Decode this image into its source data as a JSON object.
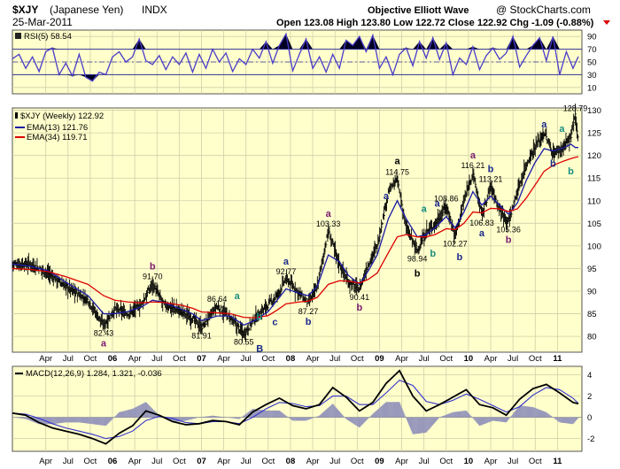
{
  "header": {
    "symbol": "$XJY",
    "name": "(Japanese Yen)",
    "exchange": "INDX",
    "title_center": "Objective Elliott Wave",
    "copyright": "@ StockCharts.com",
    "date": "25-Mar-2011",
    "quote": "Open 123.08  High 123.80  Low 122.72  Close 122.92  Chg -1.09 (-0.88%)"
  },
  "colors": {
    "panel_bg": "#ffffcc",
    "price": "#000000",
    "ema13": "#1a1aa6",
    "ema34": "#dd0000",
    "rsi": "#4a3cc8",
    "macd": "#000000",
    "signal": "#3333cc",
    "histogram": "#9999bb",
    "wave_black": "#000000",
    "wave_navy": "#1a2a8c",
    "wave_purple": "#7a1a6e",
    "wave_teal": "#1a8c80"
  },
  "x_axis": {
    "labels": [
      {
        "t": 0.75,
        "text": "Apr"
      },
      {
        "t": 1.25,
        "text": "Jul"
      },
      {
        "t": 1.75,
        "text": "Oct"
      },
      {
        "t": 2.25,
        "text": "06"
      },
      {
        "t": 2.75,
        "text": "Apr"
      },
      {
        "t": 3.25,
        "text": "Jul"
      },
      {
        "t": 3.75,
        "text": "Oct"
      },
      {
        "t": 4.25,
        "text": "07"
      },
      {
        "t": 4.75,
        "text": "Apr"
      },
      {
        "t": 5.25,
        "text": "Jul"
      },
      {
        "t": 5.75,
        "text": "Oct"
      },
      {
        "t": 6.25,
        "text": "08"
      },
      {
        "t": 6.75,
        "text": "Apr"
      },
      {
        "t": 7.25,
        "text": "Jul"
      },
      {
        "t": 7.75,
        "text": "Oct"
      },
      {
        "t": 8.25,
        "text": "09"
      },
      {
        "t": 8.75,
        "text": "Apr"
      },
      {
        "t": 9.25,
        "text": "Jul"
      },
      {
        "t": 9.75,
        "text": "Oct"
      },
      {
        "t": 10.25,
        "text": "10"
      },
      {
        "t": 10.75,
        "text": "Apr"
      },
      {
        "t": 11.25,
        "text": "Jul"
      },
      {
        "t": 11.75,
        "text": "Oct"
      },
      {
        "t": 12.25,
        "text": "11"
      }
    ],
    "bold_years": [
      "06",
      "07",
      "08",
      "09",
      "10",
      "11"
    ],
    "range": [
      0,
      12.8
    ]
  },
  "chart_data": [
    {
      "type": "line",
      "title": "RSI(5) 58.54",
      "ylim": [
        0,
        100
      ],
      "ticks": [
        10,
        30,
        50,
        70,
        90
      ],
      "overbought": 70,
      "oversold": 30,
      "x": [
        0.0,
        0.15,
        0.3,
        0.45,
        0.6,
        0.75,
        0.9,
        1.05,
        1.2,
        1.35,
        1.5,
        1.65,
        1.8,
        1.95,
        2.1,
        2.25,
        2.4,
        2.55,
        2.7,
        2.85,
        3.0,
        3.15,
        3.3,
        3.45,
        3.6,
        3.75,
        3.9,
        4.05,
        4.2,
        4.35,
        4.5,
        4.65,
        4.8,
        4.95,
        5.1,
        5.25,
        5.4,
        5.55,
        5.7,
        5.85,
        6.0,
        6.15,
        6.3,
        6.45,
        6.6,
        6.75,
        6.9,
        7.05,
        7.2,
        7.35,
        7.5,
        7.65,
        7.8,
        7.95,
        8.1,
        8.25,
        8.4,
        8.55,
        8.7,
        8.85,
        9.0,
        9.15,
        9.3,
        9.45,
        9.6,
        9.75,
        9.9,
        10.05,
        10.2,
        10.35,
        10.5,
        10.65,
        10.8,
        10.95,
        11.1,
        11.25,
        11.4,
        11.55,
        11.7,
        11.85,
        12.0,
        12.15,
        12.3,
        12.45,
        12.6,
        12.72
      ],
      "values": [
        55,
        62,
        40,
        58,
        35,
        66,
        72,
        30,
        48,
        28,
        62,
        26,
        20,
        34,
        30,
        58,
        66,
        50,
        58,
        86,
        52,
        46,
        60,
        38,
        58,
        46,
        64,
        34,
        62,
        40,
        70,
        50,
        64,
        35,
        55,
        46,
        70,
        56,
        82,
        48,
        76,
        94,
        36,
        62,
        86,
        40,
        58,
        34,
        62,
        40,
        84,
        76,
        90,
        66,
        92,
        40,
        58,
        30,
        62,
        72,
        44,
        82,
        56,
        88,
        54,
        80,
        30,
        56,
        46,
        74,
        38,
        60,
        72,
        54,
        64,
        90,
        42,
        60,
        76,
        88,
        52,
        90,
        30,
        66,
        40,
        58.54
      ]
    },
    {
      "type": "line",
      "title": "$XJY (Weekly) 122.92",
      "ylim": [
        76.5,
        130.5
      ],
      "ticks": [
        80,
        85,
        90,
        95,
        100,
        105,
        110,
        115,
        120,
        125,
        130
      ],
      "x": [
        0.0,
        0.4,
        0.8,
        1.2,
        1.7,
        2.05,
        2.3,
        2.6,
        2.9,
        3.15,
        3.4,
        3.8,
        4.05,
        4.25,
        4.6,
        4.9,
        5.2,
        5.45,
        5.75,
        5.95,
        6.15,
        6.45,
        6.65,
        6.85,
        7.1,
        7.35,
        7.55,
        7.8,
        8.0,
        8.2,
        8.45,
        8.65,
        8.85,
        9.1,
        9.3,
        9.5,
        9.75,
        9.95,
        10.15,
        10.35,
        10.55,
        10.75,
        10.95,
        11.15,
        11.35,
        11.55,
        11.75,
        11.95,
        12.15,
        12.35,
        12.55,
        12.65,
        12.72
      ],
      "values": [
        96,
        96,
        94,
        91,
        88,
        82.43,
        86,
        85,
        87,
        91.7,
        87,
        85.5,
        84,
        81.91,
        86.64,
        84,
        80.55,
        84,
        87,
        89,
        92.77,
        89.5,
        87.27,
        91,
        103.33,
        96,
        92,
        90.41,
        96,
        100,
        112,
        114.75,
        104,
        98.94,
        103,
        104.8,
        108.86,
        102.27,
        110,
        116.21,
        106.83,
        113.21,
        108,
        105.36,
        112,
        118,
        122,
        125,
        120.5,
        121.5,
        124,
        128.79,
        122.92
      ],
      "series": [
        {
          "name": "EMA(13) 121.76",
          "values": [
            96,
            95.5,
            94.5,
            92,
            89,
            85,
            85,
            85.5,
            86.5,
            88,
            87.5,
            86,
            85,
            83.5,
            84.5,
            84.5,
            82.5,
            83.5,
            85.5,
            88,
            90.5,
            89.5,
            89,
            91,
            98,
            96.5,
            93.5,
            91.5,
            94.5,
            98,
            106,
            110,
            106,
            102,
            102.5,
            104,
            106.5,
            104,
            107.5,
            112,
            109,
            111,
            109,
            107,
            109.5,
            114.5,
            118.5,
            121.5,
            121,
            121.5,
            122.5,
            121.76,
            121.76
          ]
        },
        {
          "name": "EMA(34) 119.71",
          "values": [
            95,
            94.8,
            94.3,
            93.2,
            91.5,
            89,
            88,
            87.6,
            87.4,
            87.6,
            87.5,
            86.9,
            86.2,
            85.4,
            85.2,
            85,
            84.2,
            84.1,
            84.6,
            85.8,
            87.2,
            87.6,
            87.8,
            88.6,
            91.5,
            92.3,
            92.2,
            91.8,
            92.6,
            94,
            98.5,
            102,
            102.5,
            102,
            102,
            102.5,
            103.8,
            103.6,
            105,
            107.5,
            107.3,
            108.3,
            108.2,
            107.6,
            108.2,
            110.6,
            113.5,
            116.5,
            117.8,
            118.6,
            119.3,
            119.6,
            119.71
          ]
        }
      ],
      "annotations": [
        {
          "t": 0.0,
          "v": 96.3,
          "text": "",
          "label": ""
        },
        {
          "t": 2.05,
          "v": 82.43,
          "label": "82.43",
          "wave": "a",
          "color": "purple",
          "wave_pos": "below"
        },
        {
          "t": 3.15,
          "v": 91.7,
          "label": "91.70",
          "wave": "b",
          "color": "purple",
          "wave_pos": "above"
        },
        {
          "t": 4.25,
          "v": 81.91,
          "label": "81.91",
          "wave": "",
          "color": "",
          "wave_pos": ""
        },
        {
          "t": 4.6,
          "v": 86.64,
          "label": "86.64",
          "wave": "",
          "color": "",
          "wave_pos": ""
        },
        {
          "t": 5.2,
          "v": 80.55,
          "label": "80.55",
          "wave": "B",
          "color": "navy",
          "wave_pos": "big"
        },
        {
          "t": 6.15,
          "v": 92.77,
          "label": "92.77",
          "wave": "a",
          "color": "navy",
          "wave_pos": "above"
        },
        {
          "t": 6.65,
          "v": 87.27,
          "label": "87.27",
          "wave": "b",
          "color": "navy",
          "wave_pos": "below"
        },
        {
          "t": 7.1,
          "v": 103.33,
          "label": "103.33",
          "wave": "a",
          "color": "purple",
          "wave_pos": "above"
        },
        {
          "t": 7.8,
          "v": 90.41,
          "label": "90.41",
          "wave": "b",
          "color": "purple",
          "wave_pos": "below"
        },
        {
          "t": 8.65,
          "v": 114.75,
          "label": "114.75",
          "wave": "a",
          "color": "black",
          "wave_pos": "bigabove"
        },
        {
          "t": 9.1,
          "v": 98.94,
          "label": "98.94",
          "wave": "b",
          "color": "black",
          "wave_pos": "bigbelow"
        },
        {
          "t": 9.75,
          "v": 108.86,
          "label": "108.86",
          "wave": "",
          "color": "",
          "wave_pos": ""
        },
        {
          "t": 9.95,
          "v": 102.27,
          "label": "102.27",
          "wave": "",
          "color": "",
          "wave_pos": ""
        },
        {
          "t": 10.35,
          "v": 116.21,
          "label": "116.21",
          "wave": "a",
          "color": "purple",
          "wave_pos": "above"
        },
        {
          "t": 10.55,
          "v": 106.83,
          "label": "106.83",
          "wave": "a",
          "color": "navy",
          "wave_pos": "below"
        },
        {
          "t": 10.75,
          "v": 113.21,
          "label": "113.21",
          "wave": "b",
          "color": "navy",
          "wave_pos": "above"
        },
        {
          "t": 11.15,
          "v": 105.36,
          "label": "105.36",
          "wave": "b",
          "color": "purple",
          "wave_pos": "below"
        },
        {
          "t": 12.65,
          "v": 128.79,
          "label": "128.79",
          "wave": "",
          "color": "",
          "wave_pos": ""
        }
      ],
      "wave_marks": [
        {
          "t": 5.05,
          "v": 88.2,
          "text": "a",
          "color": "teal"
        },
        {
          "t": 5.55,
          "v": 83.6,
          "text": "b",
          "color": "teal"
        },
        {
          "t": 5.9,
          "v": 82.5,
          "text": "c",
          "color": "navy"
        },
        {
          "t": 8.4,
          "v": 110.3,
          "text": "a",
          "color": "navy"
        },
        {
          "t": 9.25,
          "v": 107.5,
          "text": "a",
          "color": "teal"
        },
        {
          "t": 9.45,
          "v": 97.6,
          "text": "b",
          "color": "teal"
        },
        {
          "t": 9.55,
          "v": 108.7,
          "text": "a",
          "color": "navy"
        },
        {
          "t": 10.05,
          "v": 96.8,
          "text": "b",
          "color": "navy"
        },
        {
          "t": 11.95,
          "v": 126.2,
          "text": "a",
          "color": "navy"
        },
        {
          "t": 12.15,
          "v": 117.5,
          "text": "b",
          "color": "navy"
        },
        {
          "t": 12.35,
          "v": 125.2,
          "text": "a",
          "color": "teal"
        },
        {
          "t": 12.55,
          "v": 115.8,
          "text": "b",
          "color": "teal"
        }
      ]
    },
    {
      "type": "line",
      "title": "MACD(12,26,9) 1.284, 1.321, -0.036",
      "ylim": [
        -3.2,
        4.8
      ],
      "ticks": [
        -2,
        0,
        2,
        4
      ],
      "x": [
        0.0,
        0.3,
        0.6,
        0.9,
        1.2,
        1.5,
        1.8,
        2.1,
        2.4,
        2.7,
        3.0,
        3.3,
        3.6,
        3.9,
        4.2,
        4.5,
        4.8,
        5.1,
        5.4,
        5.7,
        6.0,
        6.3,
        6.6,
        6.9,
        7.2,
        7.5,
        7.8,
        8.1,
        8.4,
        8.7,
        9.0,
        9.3,
        9.6,
        9.9,
        10.2,
        10.5,
        10.8,
        11.1,
        11.4,
        11.7,
        12.0,
        12.3,
        12.6,
        12.72
      ],
      "values": [
        0.4,
        0.2,
        -0.5,
        -1.0,
        -1.3,
        -1.6,
        -2.0,
        -2.5,
        -1.5,
        -0.8,
        0.6,
        0.2,
        -0.4,
        -0.7,
        -0.6,
        -0.3,
        -0.4,
        -0.7,
        0.5,
        1.2,
        1.8,
        1.1,
        0.8,
        1.2,
        2.8,
        1.9,
        0.6,
        1.4,
        3.2,
        4.4,
        2.0,
        0.6,
        1.2,
        1.9,
        2.6,
        1.2,
        0.9,
        0.2,
        1.7,
        2.7,
        3.1,
        2.3,
        1.4,
        1.284
      ],
      "series": [
        {
          "name": "signal",
          "values": [
            0.4,
            0.3,
            -0.1,
            -0.6,
            -1.0,
            -1.3,
            -1.6,
            -2.0,
            -1.8,
            -1.3,
            -0.3,
            0.1,
            -0.1,
            -0.5,
            -0.6,
            -0.4,
            -0.4,
            -0.6,
            0.0,
            0.8,
            1.4,
            1.3,
            1.0,
            1.1,
            2.0,
            2.0,
            1.2,
            1.2,
            2.3,
            3.5,
            3.0,
            1.5,
            1.2,
            1.6,
            2.2,
            1.7,
            1.1,
            0.5,
            1.0,
            2.1,
            2.8,
            2.6,
            1.8,
            1.321
          ]
        }
      ]
    }
  ]
}
